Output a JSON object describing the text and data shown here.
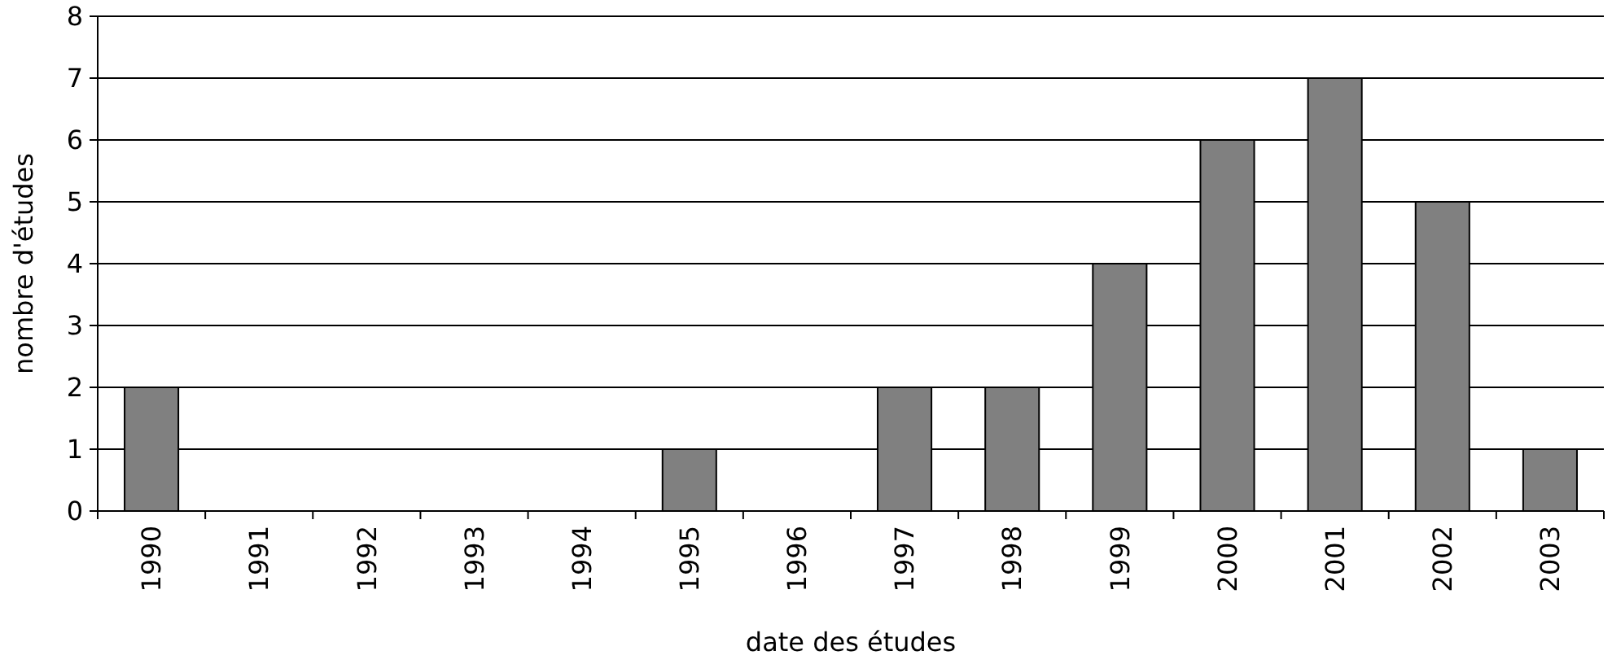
{
  "chart_data": {
    "type": "bar",
    "xlabel": "date des études",
    "ylabel": "nombre d'études",
    "categories": [
      "1990",
      "1991",
      "1992",
      "1993",
      "1994",
      "1995",
      "1996",
      "1997",
      "1998",
      "1999",
      "2000",
      "2001",
      "2002",
      "2003"
    ],
    "values": [
      2,
      0,
      0,
      0,
      0,
      1,
      0,
      2,
      2,
      4,
      6,
      7,
      5,
      1
    ],
    "color": "#808080",
    "ylim": [
      0,
      8
    ],
    "yticks": [
      0,
      1,
      2,
      3,
      4,
      5,
      6,
      7,
      8
    ],
    "grid": "y"
  }
}
